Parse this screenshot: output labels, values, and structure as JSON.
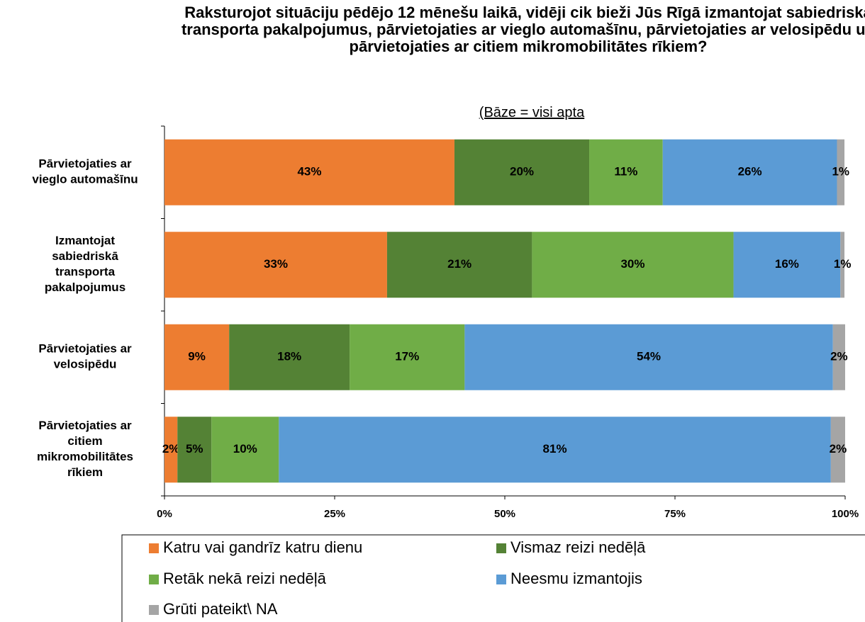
{
  "chart_data": {
    "type": "stacked_bar_horizontal",
    "title": "Raksturojot situāciju pēdējo 12 mēnešu laikā, vidēji cik bieži Jūs Rīgā izmantojat sabiedriskā transporta pakalpojumus, pārvietojaties ar vieglo automašīnu, pārvietojaties ar velosipēdu un pārvietojaties ar citiem mikromobilitātes rīkiem?",
    "subtitle": "(Bāze = visi apta",
    "categories": [
      "Pārvietojaties ar vieglo automašīnu",
      "Izmantojat sabiedriskā transporta pakalpojumus",
      "Pārvietojaties ar velosipēdu",
      "Pārvietojaties ar citiem mikromobilitātes rīkiem"
    ],
    "series": [
      {
        "name": "Katru vai gandrīz katru dienu",
        "color": "#ED7D31",
        "values": [
          42.6,
          32.7,
          9.5,
          1.9
        ],
        "value_labels": [
          "43%",
          "33%",
          "9%",
          "2%"
        ]
      },
      {
        "name": "Vismaz reizi nedēļā",
        "color": "#548235",
        "values": [
          19.8,
          21.3,
          17.7,
          5.0
        ],
        "value_labels": [
          "20%",
          "21%",
          "18%",
          "5%"
        ]
      },
      {
        "name": "Retāk nekā reizi nedēļā",
        "color": "#70AD47",
        "values": [
          10.8,
          29.6,
          16.9,
          9.9
        ],
        "value_labels": [
          "11%",
          "30%",
          "17%",
          "10%"
        ]
      },
      {
        "name": "Neesmu izmantojis",
        "color": "#5B9BD5",
        "values": [
          25.6,
          15.7,
          54.1,
          81.1
        ],
        "value_labels": [
          "26%",
          "16%",
          "54%",
          "81%"
        ]
      },
      {
        "name": "Grūti pateikt\\ NA",
        "color": "#A5A5A5",
        "values": [
          1.1,
          0.6,
          1.8,
          2.1
        ],
        "value_labels": [
          "1%",
          "1%",
          "2%",
          "2%"
        ]
      }
    ],
    "xlim": [
      0,
      100
    ],
    "xticks": [
      {
        "value": 0,
        "label": "0%"
      },
      {
        "value": 25,
        "label": "25%"
      },
      {
        "value": 50,
        "label": "50%"
      },
      {
        "value": 75,
        "label": "75%"
      },
      {
        "value": 100,
        "label": "100%"
      }
    ],
    "legend": "bottom"
  }
}
